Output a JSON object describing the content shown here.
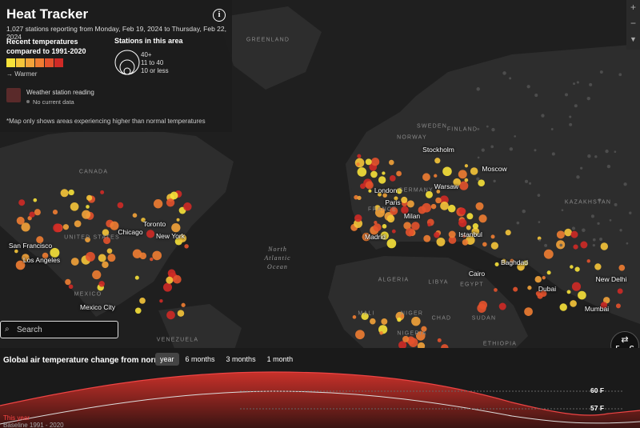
{
  "header": {
    "title": "Heat Tracker",
    "subtitle": "1,027 stations reporting from Monday, Feb 19, 2024 to Thursday, Feb 22, 2024"
  },
  "legend": {
    "temperature_title": "Recent temperatures compared to 1991-2020",
    "warmer": "→ Warmer",
    "stations_title": "Stations in this area",
    "station_sizes": [
      "40+",
      "11 to 40",
      "10 or less"
    ],
    "station_reading": "Weather station reading",
    "no_data": "No current data",
    "note": "*Map only shows areas experiencing higher than normal temperatures"
  },
  "map": {
    "countries": [
      "GREENLAND",
      "CANADA",
      "UNITED STATES",
      "MEXICO",
      "SWEDEN",
      "NORWAY",
      "FINLAND",
      "KAZAKHSTAN",
      "LIBYA",
      "EGYPT",
      "ALGERIA",
      "MALI",
      "NIGER",
      "CHAD",
      "SUDAN",
      "NIGERIA",
      "ETHIOPIA",
      "VENEZUELA",
      "FRANCE",
      "GERMANY"
    ],
    "cities": [
      "Stockholm",
      "Moscow",
      "London",
      "Warsaw",
      "Paris",
      "Milan",
      "Madrid",
      "Istanbul",
      "Baghdad",
      "Cairo",
      "Dubai",
      "New Delhi",
      "Mumbai",
      "Toronto",
      "Chicago",
      "New York",
      "San Francisco",
      "Los Angeles",
      "Mexico City"
    ],
    "ocean": "North Atlantic Ocean"
  },
  "search": {
    "placeholder": "Search"
  },
  "controls": {
    "zoom_in": "+",
    "zoom_out": "−",
    "unit_toggle": "F → C",
    "info": "i"
  },
  "timeline": {
    "title": "Global air temperature change from normal",
    "ranges": [
      "year",
      "6 months",
      "3 months",
      "1 month"
    ],
    "upper_label": "60 F",
    "lower_label": "57 F",
    "this_year": "This year",
    "baseline": "Baseline 1991 - 2020"
  }
}
